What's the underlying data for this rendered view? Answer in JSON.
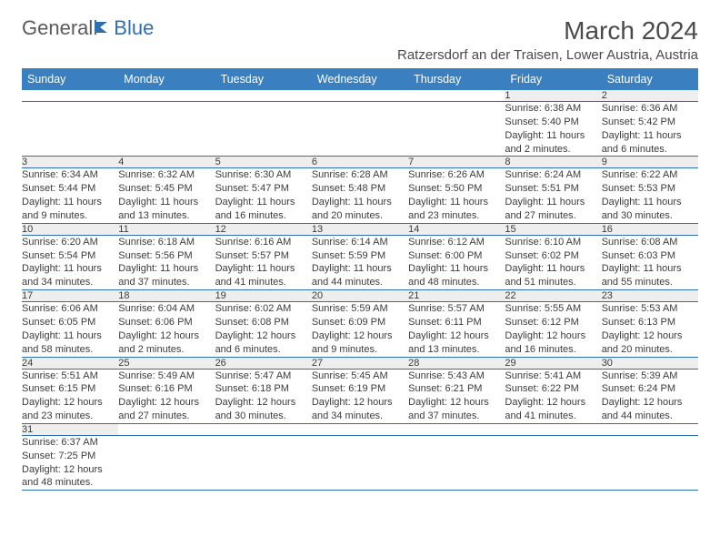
{
  "logo": {
    "text1": "General",
    "text2": "Blue"
  },
  "title": "March 2024",
  "location": "Ratzersdorf an der Traisen, Lower Austria, Austria",
  "colors": {
    "header_bg": "#3a7fc0",
    "header_text": "#ffffff",
    "daynum_bg": "#eeeeee",
    "row_border": "#2e6fb0",
    "text": "#3b3b3b",
    "logo_blue": "#2e6fb0"
  },
  "weekdays": [
    "Sunday",
    "Monday",
    "Tuesday",
    "Wednesday",
    "Thursday",
    "Friday",
    "Saturday"
  ],
  "weeks": [
    [
      null,
      null,
      null,
      null,
      null,
      {
        "n": "1",
        "sr": "Sunrise: 6:38 AM",
        "ss": "Sunset: 5:40 PM",
        "dl": "Daylight: 11 hours and 2 minutes."
      },
      {
        "n": "2",
        "sr": "Sunrise: 6:36 AM",
        "ss": "Sunset: 5:42 PM",
        "dl": "Daylight: 11 hours and 6 minutes."
      }
    ],
    [
      {
        "n": "3",
        "sr": "Sunrise: 6:34 AM",
        "ss": "Sunset: 5:44 PM",
        "dl": "Daylight: 11 hours and 9 minutes."
      },
      {
        "n": "4",
        "sr": "Sunrise: 6:32 AM",
        "ss": "Sunset: 5:45 PM",
        "dl": "Daylight: 11 hours and 13 minutes."
      },
      {
        "n": "5",
        "sr": "Sunrise: 6:30 AM",
        "ss": "Sunset: 5:47 PM",
        "dl": "Daylight: 11 hours and 16 minutes."
      },
      {
        "n": "6",
        "sr": "Sunrise: 6:28 AM",
        "ss": "Sunset: 5:48 PM",
        "dl": "Daylight: 11 hours and 20 minutes."
      },
      {
        "n": "7",
        "sr": "Sunrise: 6:26 AM",
        "ss": "Sunset: 5:50 PM",
        "dl": "Daylight: 11 hours and 23 minutes."
      },
      {
        "n": "8",
        "sr": "Sunrise: 6:24 AM",
        "ss": "Sunset: 5:51 PM",
        "dl": "Daylight: 11 hours and 27 minutes."
      },
      {
        "n": "9",
        "sr": "Sunrise: 6:22 AM",
        "ss": "Sunset: 5:53 PM",
        "dl": "Daylight: 11 hours and 30 minutes."
      }
    ],
    [
      {
        "n": "10",
        "sr": "Sunrise: 6:20 AM",
        "ss": "Sunset: 5:54 PM",
        "dl": "Daylight: 11 hours and 34 minutes."
      },
      {
        "n": "11",
        "sr": "Sunrise: 6:18 AM",
        "ss": "Sunset: 5:56 PM",
        "dl": "Daylight: 11 hours and 37 minutes."
      },
      {
        "n": "12",
        "sr": "Sunrise: 6:16 AM",
        "ss": "Sunset: 5:57 PM",
        "dl": "Daylight: 11 hours and 41 minutes."
      },
      {
        "n": "13",
        "sr": "Sunrise: 6:14 AM",
        "ss": "Sunset: 5:59 PM",
        "dl": "Daylight: 11 hours and 44 minutes."
      },
      {
        "n": "14",
        "sr": "Sunrise: 6:12 AM",
        "ss": "Sunset: 6:00 PM",
        "dl": "Daylight: 11 hours and 48 minutes."
      },
      {
        "n": "15",
        "sr": "Sunrise: 6:10 AM",
        "ss": "Sunset: 6:02 PM",
        "dl": "Daylight: 11 hours and 51 minutes."
      },
      {
        "n": "16",
        "sr": "Sunrise: 6:08 AM",
        "ss": "Sunset: 6:03 PM",
        "dl": "Daylight: 11 hours and 55 minutes."
      }
    ],
    [
      {
        "n": "17",
        "sr": "Sunrise: 6:06 AM",
        "ss": "Sunset: 6:05 PM",
        "dl": "Daylight: 11 hours and 58 minutes."
      },
      {
        "n": "18",
        "sr": "Sunrise: 6:04 AM",
        "ss": "Sunset: 6:06 PM",
        "dl": "Daylight: 12 hours and 2 minutes."
      },
      {
        "n": "19",
        "sr": "Sunrise: 6:02 AM",
        "ss": "Sunset: 6:08 PM",
        "dl": "Daylight: 12 hours and 6 minutes."
      },
      {
        "n": "20",
        "sr": "Sunrise: 5:59 AM",
        "ss": "Sunset: 6:09 PM",
        "dl": "Daylight: 12 hours and 9 minutes."
      },
      {
        "n": "21",
        "sr": "Sunrise: 5:57 AM",
        "ss": "Sunset: 6:11 PM",
        "dl": "Daylight: 12 hours and 13 minutes."
      },
      {
        "n": "22",
        "sr": "Sunrise: 5:55 AM",
        "ss": "Sunset: 6:12 PM",
        "dl": "Daylight: 12 hours and 16 minutes."
      },
      {
        "n": "23",
        "sr": "Sunrise: 5:53 AM",
        "ss": "Sunset: 6:13 PM",
        "dl": "Daylight: 12 hours and 20 minutes."
      }
    ],
    [
      {
        "n": "24",
        "sr": "Sunrise: 5:51 AM",
        "ss": "Sunset: 6:15 PM",
        "dl": "Daylight: 12 hours and 23 minutes."
      },
      {
        "n": "25",
        "sr": "Sunrise: 5:49 AM",
        "ss": "Sunset: 6:16 PM",
        "dl": "Daylight: 12 hours and 27 minutes."
      },
      {
        "n": "26",
        "sr": "Sunrise: 5:47 AM",
        "ss": "Sunset: 6:18 PM",
        "dl": "Daylight: 12 hours and 30 minutes."
      },
      {
        "n": "27",
        "sr": "Sunrise: 5:45 AM",
        "ss": "Sunset: 6:19 PM",
        "dl": "Daylight: 12 hours and 34 minutes."
      },
      {
        "n": "28",
        "sr": "Sunrise: 5:43 AM",
        "ss": "Sunset: 6:21 PM",
        "dl": "Daylight: 12 hours and 37 minutes."
      },
      {
        "n": "29",
        "sr": "Sunrise: 5:41 AM",
        "ss": "Sunset: 6:22 PM",
        "dl": "Daylight: 12 hours and 41 minutes."
      },
      {
        "n": "30",
        "sr": "Sunrise: 5:39 AM",
        "ss": "Sunset: 6:24 PM",
        "dl": "Daylight: 12 hours and 44 minutes."
      }
    ],
    [
      {
        "n": "31",
        "sr": "Sunrise: 6:37 AM",
        "ss": "Sunset: 7:25 PM",
        "dl": "Daylight: 12 hours and 48 minutes."
      },
      null,
      null,
      null,
      null,
      null,
      null
    ]
  ]
}
